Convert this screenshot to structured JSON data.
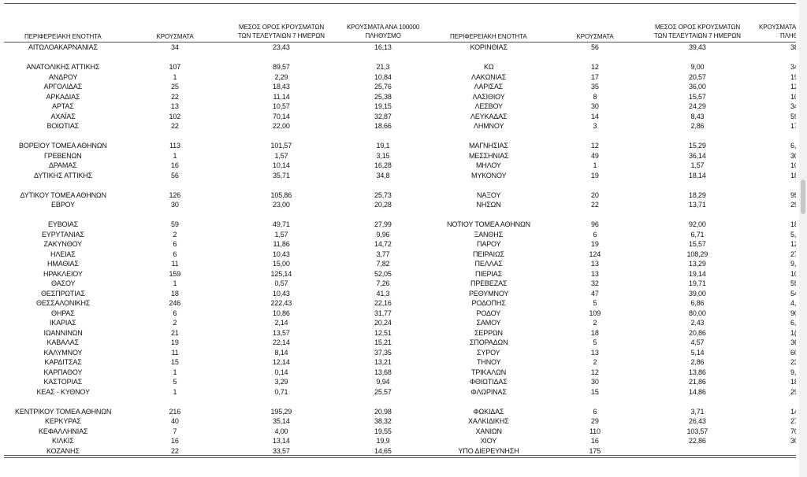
{
  "headers": {
    "left": [
      [
        "ΠΕΡΙΦΕΡΕΙΑΚΗ ΕΝΟΤΗΤΑ"
      ],
      [
        "ΚΡΟΥΣΜΑΤΑ"
      ],
      [
        "ΜΕΣΟΣ ΟΡΟΣ ΚΡΟΥΣΜΑΤΩΝ",
        "ΤΩΝ ΤΕΛΕΥΤΑΙΩΝ 7 ΗΜΕΡΩΝ"
      ],
      [
        "ΚΡΟΥΣΜΑΤΑ ΑΝΑ 100000",
        "ΠΛΗΘΥΣΜΟ"
      ]
    ],
    "right": [
      [
        "ΠΕΡΙΦΕΡΕΙΑΚΗ ΕΝΟΤΗΤΑ"
      ],
      [
        "ΚΡΟΥΣΜΑΤΑ"
      ],
      [
        "ΜΕΣΟΣ ΟΡΟΣ ΚΡΟΥΣΜΑΤΩΝ",
        "ΤΩΝ ΤΕΛΕΥΤΑΙΩΝ 7 ΗΜΕΡΩΝ"
      ],
      [
        "ΚΡΟΥΣΜΑΤΑ",
        "ΠΛΗΘ"
      ]
    ]
  },
  "groups": [
    [
      {
        "left": [
          "ΑΙΤΩΛΟΑΚΑΡΝΑΝΙΑΣ",
          "34",
          "23,43",
          "16,13"
        ],
        "right": [
          "ΚΟΡΙΝΘΙΑΣ",
          "56",
          "39,43",
          "38"
        ]
      }
    ],
    [
      {
        "left": [
          "ΑΝΑΤΟΛΙΚΗΣ ΑΤΤΙΚΗΣ",
          "107",
          "89,57",
          "21,3"
        ],
        "right": [
          "ΚΩ",
          "12",
          "9,00",
          "34"
        ]
      },
      {
        "left": [
          "ΑΝΔΡΟΥ",
          "1",
          "2,29",
          "10,84"
        ],
        "right": [
          "ΛΑΚΩΝΙΑΣ",
          "17",
          "20,57",
          "19"
        ]
      },
      {
        "left": [
          "ΑΡΓΟΛΙΔΑΣ",
          "25",
          "18,43",
          "25,76"
        ],
        "right": [
          "ΛΑΡΙΣΑΣ",
          "35",
          "36,00",
          "12"
        ]
      },
      {
        "left": [
          "ΑΡΚΑΔΙΑΣ",
          "22",
          "11,14",
          "25,38"
        ],
        "right": [
          "ΛΑΣΙΘΙΟΥ",
          "8",
          "15,57",
          "10"
        ]
      },
      {
        "left": [
          "ΑΡΤΑΣ",
          "13",
          "10,57",
          "19,15"
        ],
        "right": [
          "ΛΕΣΒΟΥ",
          "30",
          "24,29",
          "34"
        ]
      },
      {
        "left": [
          "ΑΧΑΪΑΣ",
          "102",
          "70,14",
          "32,87"
        ],
        "right": [
          "ΛΕΥΚΑΔΑΣ",
          "14",
          "8,43",
          "59"
        ]
      },
      {
        "left": [
          "ΒΟΙΩΤΙΑΣ",
          "22",
          "22,00",
          "18,66"
        ],
        "right": [
          "ΛΗΜΝΟΥ",
          "3",
          "2,86",
          "17"
        ]
      }
    ],
    [
      {
        "left": [
          "ΒΟΡΕΙΟΥ ΤΟΜΕΑ ΑΘΗΝΩΝ",
          "113",
          "101,57",
          "19,1"
        ],
        "right": [
          "ΜΑΓΝΗΣΙΑΣ",
          "12",
          "15,29",
          "6,"
        ]
      },
      {
        "left": [
          "ΓΡΕΒΕΝΩΝ",
          "1",
          "1,57",
          "3,15"
        ],
        "right": [
          "ΜΕΣΣΗΝΙΑΣ",
          "49",
          "36,14",
          "30"
        ]
      },
      {
        "left": [
          "ΔΡΑΜΑΣ",
          "16",
          "10,14",
          "16,28"
        ],
        "right": [
          "ΜΗΛΟΥ",
          "1",
          "1,57",
          "10"
        ]
      },
      {
        "left": [
          "ΔΥΤΙΚΗΣ ΑΤΤΙΚΗΣ",
          "56",
          "35,71",
          "34,8"
        ],
        "right": [
          "ΜΥΚΟΝΟΥ",
          "19",
          "18,14",
          "18"
        ]
      }
    ],
    [
      {
        "left": [
          "ΔΥΤΙΚΟΥ ΤΟΜΕΑ ΑΘΗΝΩΝ",
          "126",
          "105,86",
          "25,73"
        ],
        "right": [
          "ΝΑΞΟΥ",
          "20",
          "18,29",
          "95"
        ]
      },
      {
        "left": [
          "ΕΒΡΟΥ",
          "30",
          "23,00",
          "20,28"
        ],
        "right": [
          "ΝΗΣΩΝ",
          "22",
          "13,71",
          "29"
        ]
      }
    ],
    [
      {
        "left": [
          "ΕΥΒΟΙΑΣ",
          "59",
          "49,71",
          "27,99"
        ],
        "right": [
          "ΝΟΤΙΟΥ ΤΟΜΕΑ ΑΘΗΝΩΝ",
          "96",
          "92,00",
          "18"
        ]
      },
      {
        "left": [
          "ΕΥΡΥΤΑΝΙΑΣ",
          "2",
          "1,57",
          "9,96"
        ],
        "right": [
          "ΞΑΝΘΗΣ",
          "6",
          "6,71",
          "5,"
        ]
      },
      {
        "left": [
          "ΖΑΚΥΝΘΟΥ",
          "6",
          "11,86",
          "14,72"
        ],
        "right": [
          "ΠΑΡΟΥ",
          "19",
          "15,57",
          "12"
        ]
      },
      {
        "left": [
          "ΗΛΕΙΑΣ",
          "6",
          "10,43",
          "3,77"
        ],
        "right": [
          "ΠΕΙΡΑΙΩΣ",
          "124",
          "108,29",
          "27"
        ]
      },
      {
        "left": [
          "ΗΜΑΘΙΑΣ",
          "11",
          "15,00",
          "7,82"
        ],
        "right": [
          "ΠΕΛΛΑΣ",
          "13",
          "13,29",
          "9,"
        ]
      },
      {
        "left": [
          "ΗΡΑΚΛΕΙΟΥ",
          "159",
          "125,14",
          "52,05"
        ],
        "right": [
          "ΠΙΕΡΙΑΣ",
          "13",
          "19,14",
          "10"
        ]
      },
      {
        "left": [
          "ΘΑΣΟΥ",
          "1",
          "0,57",
          "7,26"
        ],
        "right": [
          "ΠΡΕΒΕΖΑΣ",
          "32",
          "19,71",
          "55"
        ]
      },
      {
        "left": [
          "ΘΕΣΠΡΩΤΙΑΣ",
          "18",
          "10,43",
          "41,3"
        ],
        "right": [
          "ΡΕΘΥΜΝΟΥ",
          "47",
          "39,00",
          "54"
        ]
      },
      {
        "left": [
          "ΘΕΣΣΑΛΟΝΙΚΗΣ",
          "246",
          "222,43",
          "22,16"
        ],
        "right": [
          "ΡΟΔΟΠΗΣ",
          "5",
          "6,86",
          "4,"
        ]
      },
      {
        "left": [
          "ΘΗΡΑΣ",
          "6",
          "10,86",
          "31,77"
        ],
        "right": [
          "ΡΟΔΟΥ",
          "109",
          "80,00",
          "90"
        ]
      },
      {
        "left": [
          "ΙΚΑΡΙΑΣ",
          "2",
          "2,14",
          "20,24"
        ],
        "right": [
          "ΣΑΜΟΥ",
          "2",
          "2,43",
          "6,"
        ]
      },
      {
        "left": [
          "ΙΩΑΝΝΙΝΩΝ",
          "21",
          "13,57",
          "12,51"
        ],
        "right": [
          "ΣΕΡΡΩΝ",
          "18",
          "20,86",
          "1("
        ]
      },
      {
        "left": [
          "ΚΑΒΑΛΑΣ",
          "19",
          "22,14",
          "15,21"
        ],
        "right": [
          "ΣΠΟΡΑΔΩΝ",
          "5",
          "4,57",
          "36"
        ]
      },
      {
        "left": [
          "ΚΑΛΥΜΝΟΥ",
          "11",
          "8,14",
          "37,35"
        ],
        "right": [
          "ΣΥΡΟΥ",
          "13",
          "5,14",
          "60"
        ]
      },
      {
        "left": [
          "ΚΑΡΔΙΤΣΑΣ",
          "15",
          "12,14",
          "13,21"
        ],
        "right": [
          "ΤΗΝΟΥ",
          "2",
          "2,86",
          "23"
        ]
      },
      {
        "left": [
          "ΚΑΡΠΑΘΟΥ",
          "1",
          "0,14",
          "13,68"
        ],
        "right": [
          "ΤΡΙΚΑΛΩΝ",
          "12",
          "13,86",
          "9,"
        ]
      },
      {
        "left": [
          "ΚΑΣΤΟΡΙΑΣ",
          "5",
          "3,29",
          "9,94"
        ],
        "right": [
          "ΦΘΙΩΤΙΔΑΣ",
          "30",
          "21,86",
          "18"
        ]
      },
      {
        "left": [
          "ΚΕΑΣ - ΚΥΘΝΟΥ",
          "1",
          "0,71",
          "25,57"
        ],
        "right": [
          "ΦΛΩΡΙΝΑΣ",
          "15",
          "14,86",
          "29"
        ]
      }
    ],
    [
      {
        "left": [
          "ΚΕΝΤΡΙΚΟΥ ΤΟΜΕΑ ΑΘΗΝΩΝ",
          "216",
          "195,29",
          "20,98"
        ],
        "right": [
          "ΦΩΚΙΔΑΣ",
          "6",
          "3,71",
          "14"
        ]
      },
      {
        "left": [
          "ΚΕΡΚΥΡΑΣ",
          "40",
          "35,14",
          "38,32"
        ],
        "right": [
          "ΧΑΛΚΙΔΙΚΗΣ",
          "29",
          "26,43",
          "27"
        ]
      },
      {
        "left": [
          "ΚΕΦΑΛΛΗΝΙΑΣ",
          "7",
          "4,00",
          "19,55"
        ],
        "right": [
          "ΧΑΝΙΩΝ",
          "110",
          "103,57",
          "70"
        ]
      },
      {
        "left": [
          "ΚΙΛΚΙΣ",
          "16",
          "13,14",
          "19,9"
        ],
        "right": [
          "ΧΙΟΥ",
          "16",
          "22,86",
          "30"
        ]
      },
      {
        "left": [
          "ΚΟΖΑΝΗΣ",
          "22",
          "33,57",
          "14,65"
        ],
        "right": [
          "ΥΠΟ ΔΙΕΡΕΥΝΗΣΗ",
          "175"
        ]
      }
    ]
  ]
}
